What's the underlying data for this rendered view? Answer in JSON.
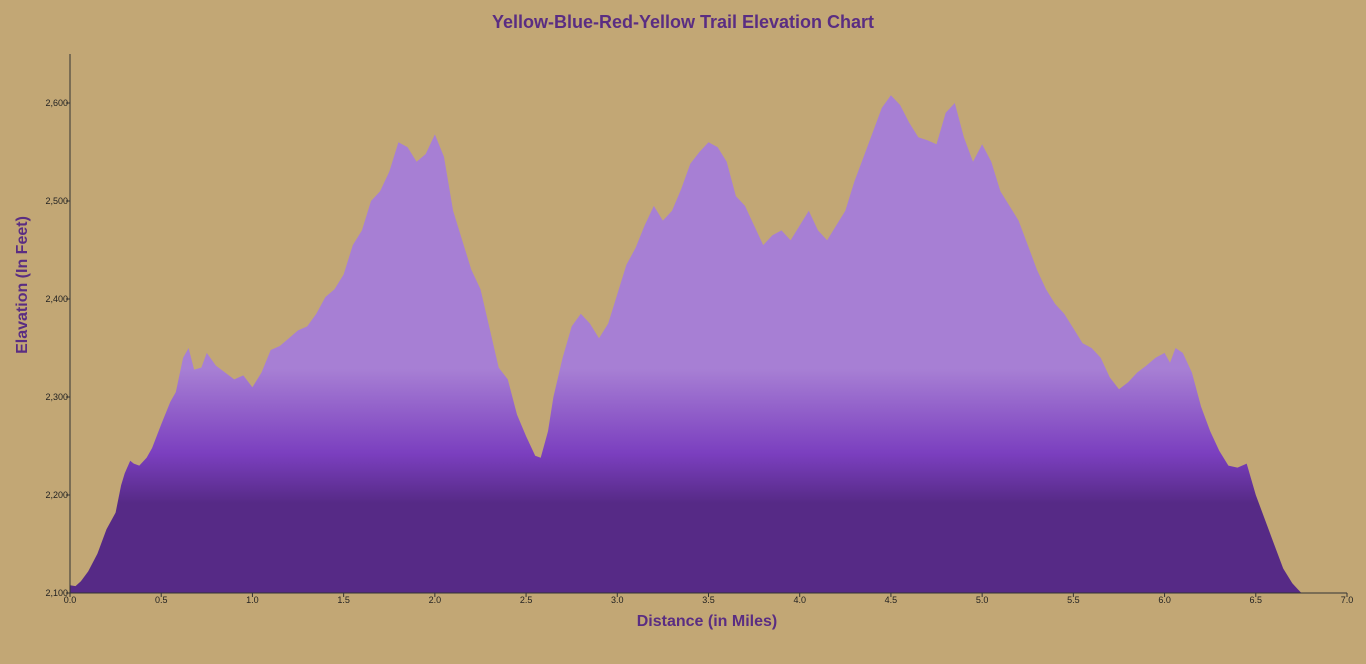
{
  "chart_data": {
    "type": "area",
    "title": "Yellow-Blue-Red-Yellow Trail Elevation Chart",
    "xlabel": "Distance (in Miles)",
    "ylabel": "Elavation (In Feet)",
    "xlim": [
      0,
      7
    ],
    "ylim": [
      2100,
      2650
    ],
    "x_ticks": [
      "0.0",
      "0.5",
      "1.0",
      "1.5",
      "2.0",
      "2.5",
      "3.0",
      "3.5",
      "4.0",
      "4.5",
      "5.0",
      "5.5",
      "6.0",
      "6.5",
      "7.0"
    ],
    "y_ticks": [
      "2,100",
      "2,200",
      "2,300",
      "2,400",
      "2,500",
      "2,600"
    ],
    "colors": {
      "background": "#c2a775",
      "fill_light": "#a77fd4",
      "fill_mid": "#7b3fbf",
      "fill_dark": "#562a86",
      "title": "#5a2d82"
    },
    "grid": false,
    "series": [
      {
        "x": [
          0.0,
          0.03,
          0.06,
          0.1,
          0.15,
          0.2,
          0.25,
          0.28,
          0.3,
          0.33,
          0.35,
          0.38,
          0.42,
          0.45,
          0.5,
          0.55,
          0.58,
          0.62,
          0.65,
          0.68,
          0.72,
          0.75,
          0.8,
          0.85,
          0.9,
          0.95,
          1.0,
          1.05,
          1.1,
          1.15,
          1.2,
          1.25,
          1.3,
          1.35,
          1.4,
          1.45,
          1.5,
          1.55,
          1.6,
          1.65,
          1.7,
          1.75,
          1.8,
          1.85,
          1.9,
          1.95,
          2.0,
          2.05,
          2.1,
          2.15,
          2.2,
          2.25,
          2.3,
          2.35,
          2.4,
          2.45,
          2.5,
          2.55,
          2.58,
          2.62,
          2.65,
          2.7,
          2.75,
          2.8,
          2.85,
          2.9,
          2.95,
          3.0,
          3.05,
          3.1,
          3.15,
          3.2,
          3.25,
          3.3,
          3.35,
          3.4,
          3.45,
          3.5,
          3.55,
          3.6,
          3.65,
          3.7,
          3.75,
          3.8,
          3.85,
          3.9,
          3.95,
          4.0,
          4.05,
          4.1,
          4.15,
          4.2,
          4.25,
          4.3,
          4.35,
          4.4,
          4.45,
          4.5,
          4.55,
          4.6,
          4.65,
          4.7,
          4.75,
          4.8,
          4.85,
          4.9,
          4.95,
          5.0,
          5.05,
          5.1,
          5.15,
          5.2,
          5.25,
          5.3,
          5.35,
          5.4,
          5.45,
          5.5,
          5.55,
          5.6,
          5.65,
          5.7,
          5.75,
          5.8,
          5.85,
          5.9,
          5.95,
          6.0,
          6.03,
          6.06,
          6.1,
          6.15,
          6.2,
          6.25,
          6.3,
          6.35,
          6.4,
          6.45,
          6.5,
          6.55,
          6.6,
          6.65,
          6.7,
          6.73,
          6.75
        ],
        "y": [
          2108,
          2107,
          2112,
          2122,
          2140,
          2165,
          2182,
          2210,
          2222,
          2235,
          2232,
          2230,
          2238,
          2248,
          2272,
          2295,
          2305,
          2340,
          2350,
          2328,
          2330,
          2345,
          2332,
          2325,
          2318,
          2322,
          2310,
          2325,
          2348,
          2352,
          2360,
          2368,
          2372,
          2385,
          2402,
          2410,
          2425,
          2455,
          2470,
          2500,
          2510,
          2530,
          2560,
          2555,
          2540,
          2548,
          2568,
          2545,
          2490,
          2460,
          2430,
          2410,
          2370,
          2330,
          2318,
          2282,
          2260,
          2240,
          2238,
          2265,
          2300,
          2340,
          2372,
          2385,
          2375,
          2360,
          2375,
          2405,
          2435,
          2452,
          2475,
          2495,
          2480,
          2490,
          2512,
          2538,
          2550,
          2560,
          2555,
          2540,
          2505,
          2495,
          2475,
          2455,
          2465,
          2470,
          2460,
          2475,
          2490,
          2470,
          2460,
          2475,
          2490,
          2520,
          2545,
          2570,
          2595,
          2608,
          2598,
          2580,
          2565,
          2562,
          2558,
          2590,
          2600,
          2565,
          2540,
          2558,
          2540,
          2510,
          2495,
          2480,
          2455,
          2430,
          2410,
          2395,
          2385,
          2370,
          2355,
          2350,
          2340,
          2320,
          2308,
          2315,
          2325,
          2332,
          2340,
          2345,
          2335,
          2350,
          2345,
          2325,
          2290,
          2265,
          2245,
          2230,
          2228,
          2232,
          2200,
          2175,
          2150,
          2125,
          2110,
          2104,
          2100
        ]
      }
    ]
  }
}
